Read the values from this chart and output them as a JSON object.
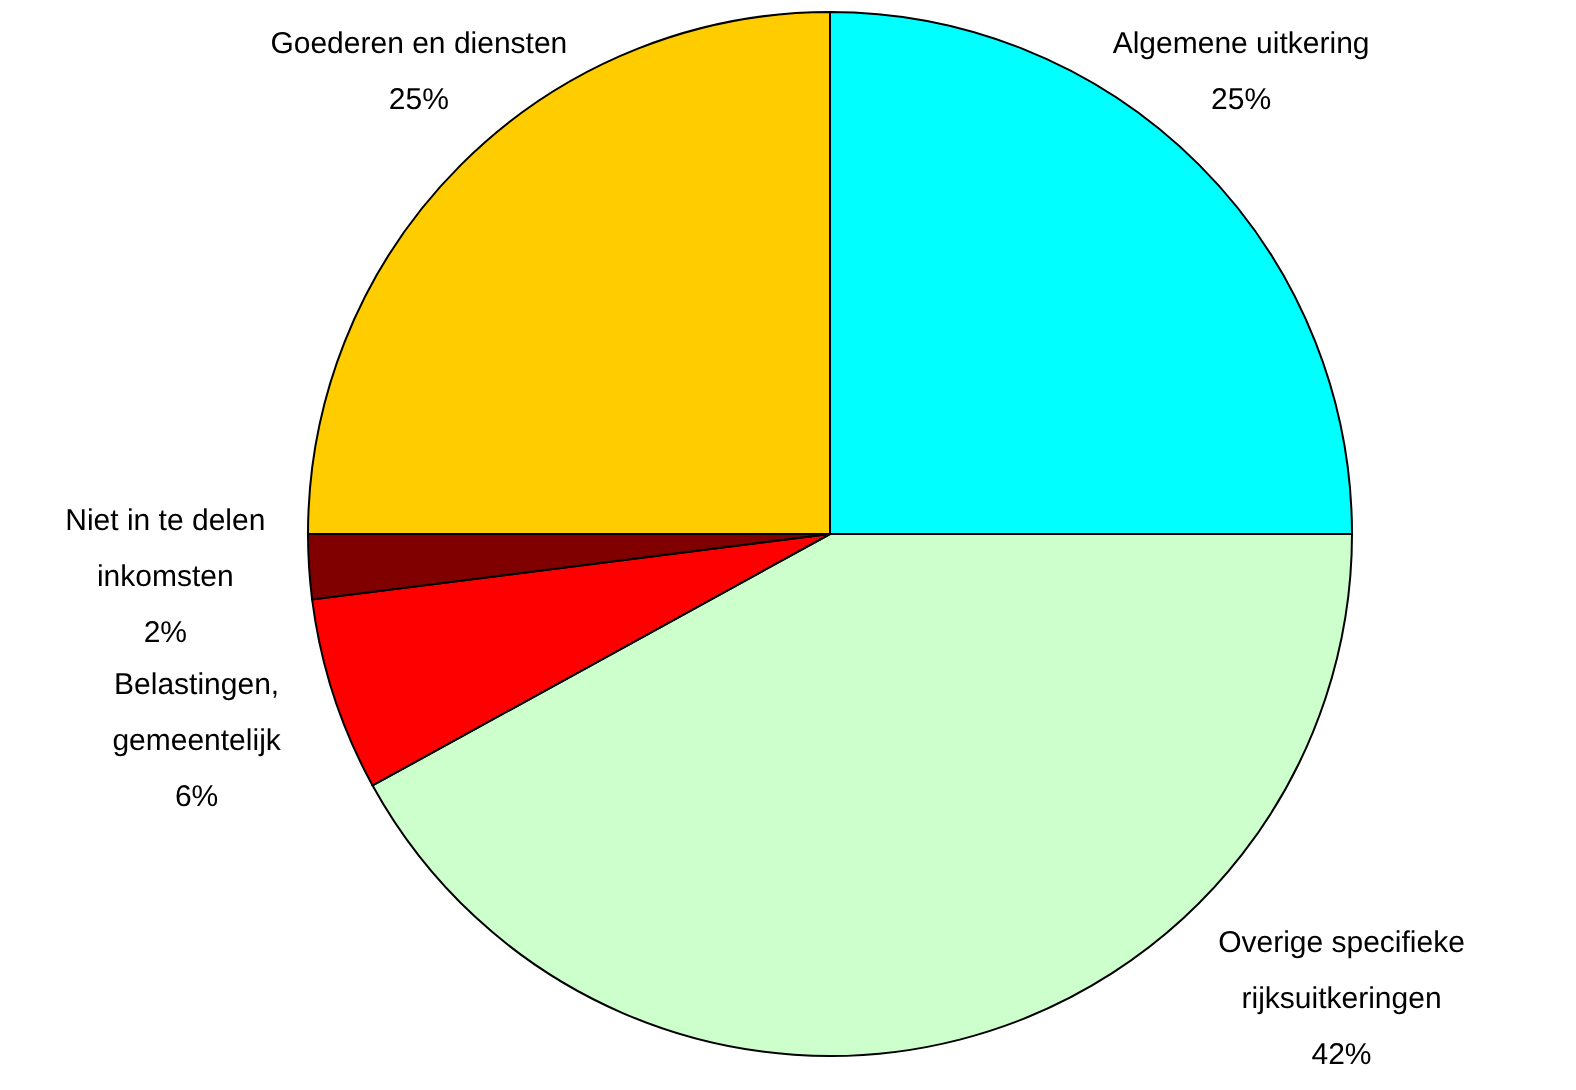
{
  "chart_data": {
    "type": "pie",
    "categories": [
      "Algemene uitkering",
      "Overige specifieke\nrijksuitkeringen",
      "Belastingen,\ngemeentelijk",
      "Niet in te delen\ninkomsten",
      "Goederen en diensten"
    ],
    "values": [
      25,
      42,
      6,
      2,
      25
    ],
    "value_labels": [
      "25%",
      "42%",
      "6%",
      "2%",
      "25%"
    ],
    "colors": [
      "#00ffff",
      "#ccffcc",
      "#ff0000",
      "#800000",
      "#ffcc00"
    ]
  }
}
